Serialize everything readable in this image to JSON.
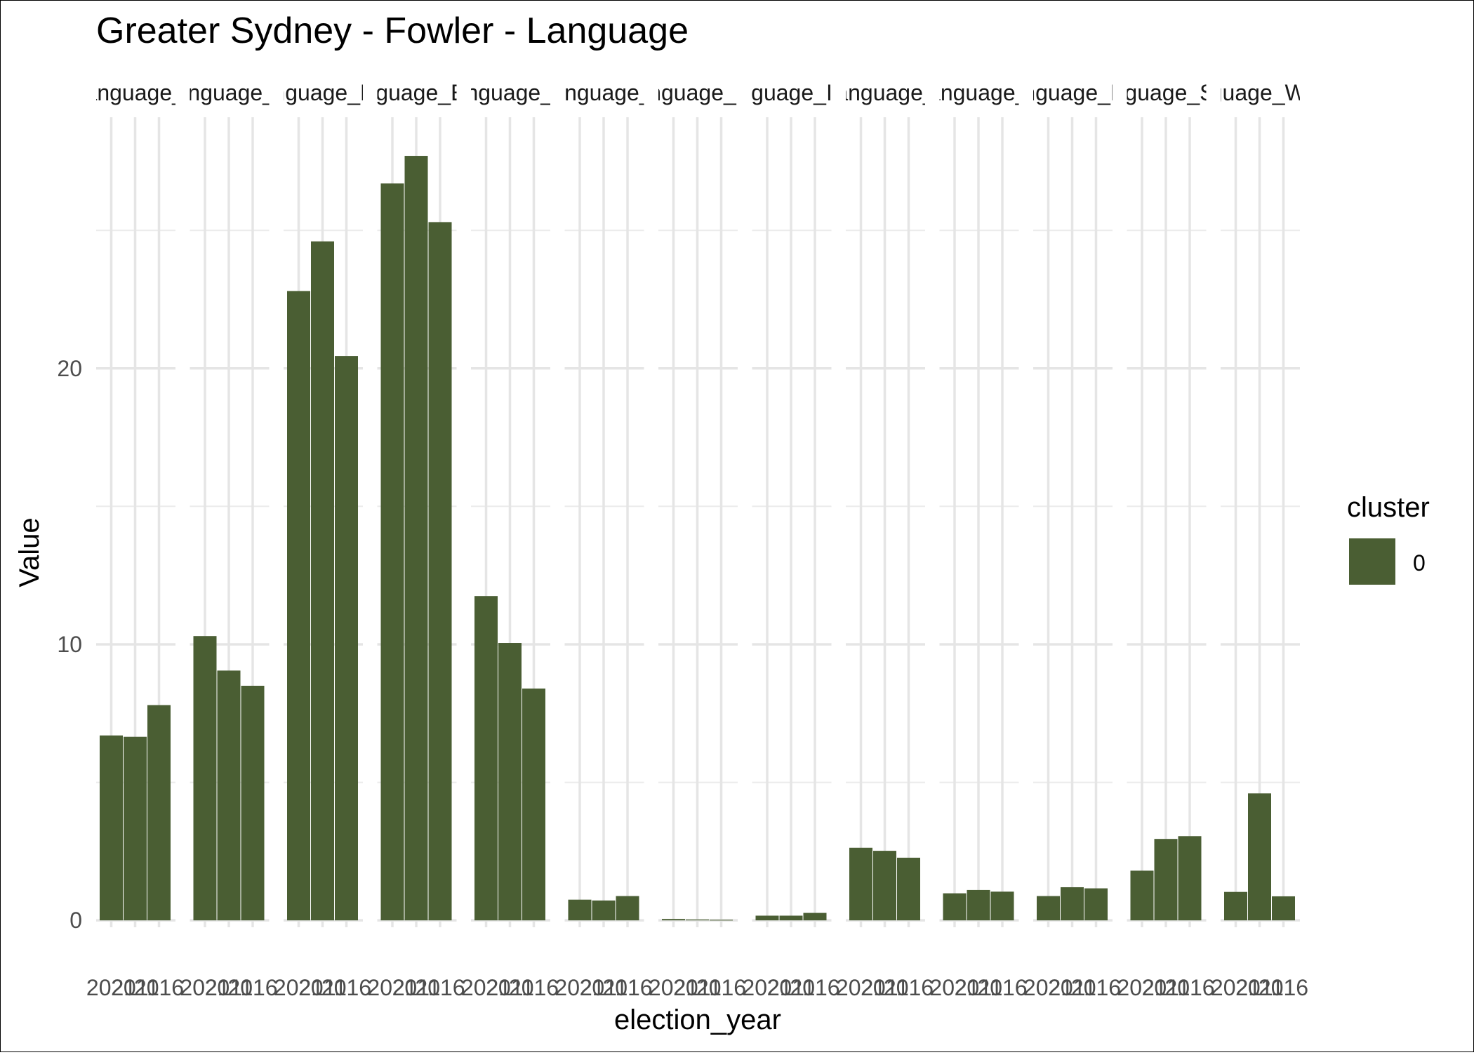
{
  "chart_data": {
    "type": "bar",
    "title": "Greater Sydney - Fowler - Language",
    "xlabel": "election_year",
    "ylabel": "Value",
    "facets": [
      {
        "strip_label": "Language_A",
        "categories": [
          "2021",
          "2011",
          "2016"
        ],
        "values": [
          6.7,
          6.65,
          7.8
        ]
      },
      {
        "strip_label": "Language_Cl",
        "categories": [
          "2021",
          "2011",
          "2016"
        ],
        "values": [
          10.3,
          9.05,
          8.5
        ]
      },
      {
        "strip_label": "Language_Eas",
        "categories": [
          "2021",
          "2011",
          "2016"
        ],
        "values": [
          22.8,
          24.6,
          20.45
        ]
      },
      {
        "strip_label": "Language_Engl",
        "categories": [
          "2021",
          "2011",
          "2016"
        ],
        "values": [
          26.7,
          27.7,
          25.3
        ]
      },
      {
        "strip_label": "Language_Eu",
        "categories": [
          "2021",
          "2011",
          "2016"
        ],
        "values": [
          11.75,
          10.05,
          8.4
        ]
      },
      {
        "strip_label": "Language_O",
        "categories": [
          "2021",
          "2011",
          "2016"
        ],
        "values": [
          0.75,
          0.72,
          0.88
        ]
      },
      {
        "strip_label": "Language_Indi",
        "categories": [
          "2021",
          "2011",
          "2016"
        ],
        "values": [
          0.05,
          0.03,
          0.02
        ]
      },
      {
        "strip_label": "Language_Indo",
        "categories": [
          "2021",
          "2011",
          "2016"
        ],
        "values": [
          0.17,
          0.17,
          0.27
        ]
      },
      {
        "strip_label": "Language_It",
        "categories": [
          "2021",
          "2011",
          "2016"
        ],
        "values": [
          2.63,
          2.52,
          2.27
        ]
      },
      {
        "strip_label": "Language_P",
        "categories": [
          "2021",
          "2011",
          "2016"
        ],
        "values": [
          0.98,
          1.1,
          1.04
        ]
      },
      {
        "strip_label": "Language_Phil",
        "categories": [
          "2021",
          "2011",
          "2016"
        ],
        "values": [
          0.88,
          1.2,
          1.16
        ]
      },
      {
        "strip_label": "Language_Sout",
        "categories": [
          "2021",
          "2011",
          "2016"
        ],
        "values": [
          1.8,
          2.95,
          3.05
        ]
      },
      {
        "strip_label": "Language_Weste",
        "categories": [
          "2021",
          "2011",
          "2016"
        ],
        "values": [
          1.03,
          4.6,
          0.87
        ]
      }
    ],
    "ylim": [
      -0.25,
      29.1
    ],
    "y_ticks": [
      0,
      10,
      20
    ],
    "grid": true,
    "bar_color": "#4a5e33",
    "legend": {
      "title": "cluster",
      "entries": [
        "0"
      ],
      "position": "right"
    }
  }
}
